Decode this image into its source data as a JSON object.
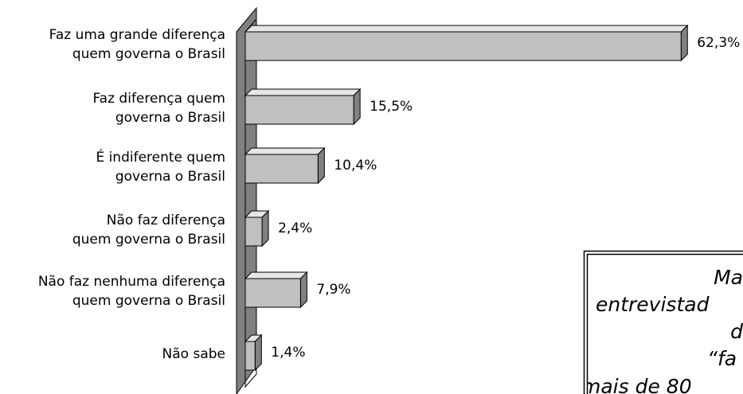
{
  "chart_data": {
    "type": "bar",
    "categories": [
      [
        "Faz uma grande diferença",
        "quem governa o Brasil"
      ],
      [
        "Faz diferença quem",
        "governa o Brasil"
      ],
      [
        "É indiferente quem",
        "governa o Brasil"
      ],
      [
        "Não faz diferença",
        "quem governa o Brasil"
      ],
      [
        "Não faz nenhuma diferença",
        "quem governa o Brasil"
      ],
      [
        "Não sabe"
      ]
    ],
    "values": [
      62.3,
      15.5,
      10.4,
      2.4,
      7.9,
      1.4
    ],
    "value_labels": [
      "62,3%",
      "15,5%",
      "10,4%",
      "2,4%",
      "7,9%",
      "1,4%"
    ],
    "color": "#c0c0c0",
    "xlim": [
      0,
      65
    ],
    "annotation": [
      "Ma",
      "entrevistad",
      "d",
      "“fa",
      "mais de 80"
    ]
  }
}
